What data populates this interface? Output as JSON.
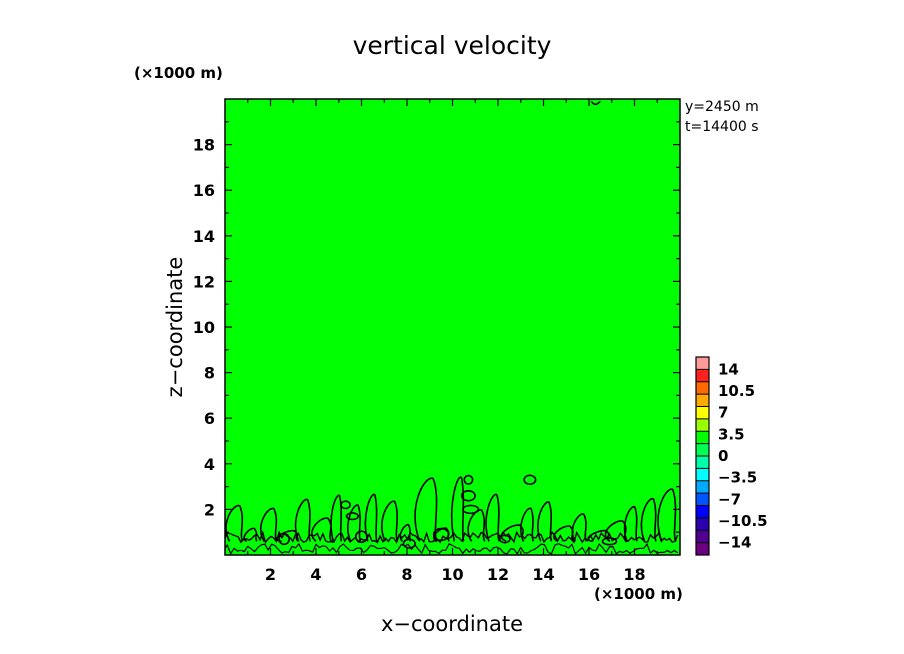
{
  "chart_data": {
    "type": "contour",
    "title": "vertical velocity",
    "xlabel": "x−coordinate",
    "ylabel": "z−coordinate",
    "x_unit": "(×1000 m)",
    "y_unit": "(×1000 m)",
    "xlim": [
      0,
      20
    ],
    "ylim": [
      0,
      20
    ],
    "x_ticks": [
      "2",
      "4",
      "6",
      "8",
      "10",
      "12",
      "14",
      "16",
      "18"
    ],
    "y_ticks": [
      "2",
      "4",
      "6",
      "8",
      "10",
      "12",
      "14",
      "16",
      "18"
    ],
    "annotations": [
      "y=2450 m",
      "t=14400 s"
    ],
    "field_background_color": "#00ff00",
    "colorbar": {
      "labels": [
        "14",
        "10.5",
        "7",
        "3.5",
        "0",
        "−3.5",
        "−7",
        "−10.5",
        "−14"
      ],
      "colors": [
        "#ff9a9a",
        "#ff2020",
        "#ff6a00",
        "#ffaa00",
        "#ffff00",
        "#99ff00",
        "#00ff00",
        "#00ff55",
        "#00ffaa",
        "#00ffff",
        "#00aaff",
        "#0055ff",
        "#0000ff",
        "#2a00b0",
        "#500090",
        "#6a0080"
      ]
    },
    "contour_region_z_max": 4.2
  }
}
